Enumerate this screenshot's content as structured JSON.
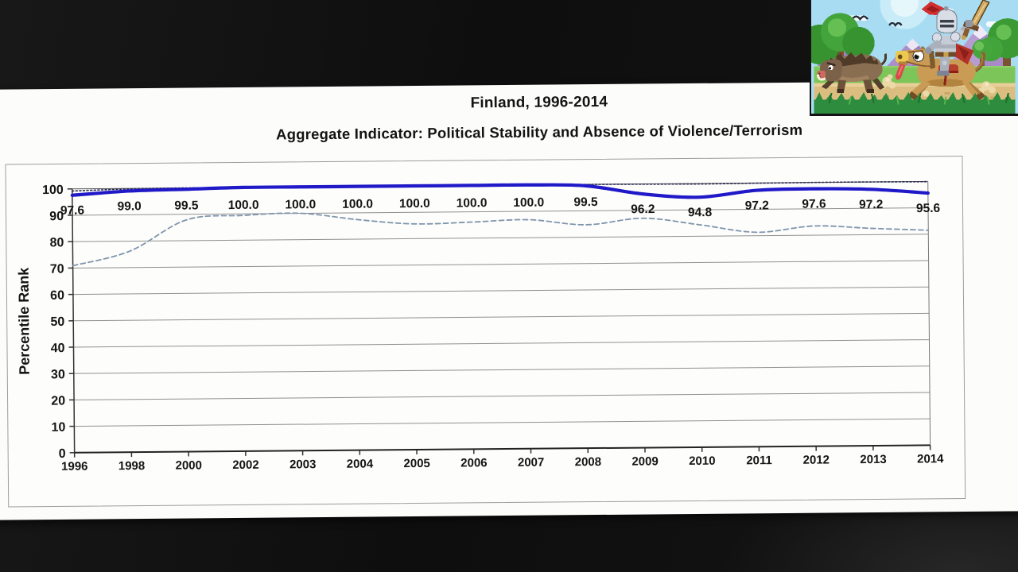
{
  "slide": {
    "title": "Finland, 1996-2014",
    "subtitle": "Aggregate Indicator: Political Stability and Absence of Violence/Terrorism"
  },
  "chart_data": {
    "type": "line",
    "title": "Finland, 1996-2014",
    "subtitle": "Aggregate Indicator: Political Stability and Absence of Violence/Terrorism",
    "ylabel": "Percentile Rank",
    "xlabel": "",
    "ylim": [
      0,
      100
    ],
    "ytick_labels": [
      "0",
      "10",
      "20",
      "30",
      "40",
      "50",
      "60",
      "70",
      "80",
      "90",
      "100"
    ],
    "grid": "horizontal",
    "legend": "none",
    "categories": [
      "1996",
      "1998",
      "2000",
      "2002",
      "2003",
      "2004",
      "2005",
      "2006",
      "2007",
      "2008",
      "2009",
      "2010",
      "2011",
      "2012",
      "2013",
      "2014"
    ],
    "series": [
      {
        "name": "percentile-rank",
        "line": "solid-thick",
        "color": "#2019c8",
        "values": [
          97.6,
          99.0,
          99.5,
          100.0,
          100.0,
          100.0,
          100.0,
          100.0,
          100.0,
          99.5,
          96.2,
          94.8,
          97.2,
          97.6,
          97.2,
          95.6
        ]
      },
      {
        "name": "upper-band-line",
        "line": "dotted",
        "color": "#2b2b52",
        "values": [
          99.2,
          99.8,
          100,
          100,
          100,
          100,
          100,
          100,
          100,
          100,
          99.9,
          99.8,
          99.9,
          100,
          100,
          99.9
        ]
      },
      {
        "name": "lower-band-line",
        "line": "dashed",
        "color": "#7f95ab",
        "values": [
          70.9,
          76.2,
          87.9,
          89.4,
          90.0,
          87.4,
          85.6,
          86.1,
          86.8,
          84.7,
          87.0,
          84.3,
          81.3,
          83.5,
          82.4,
          81.5
        ]
      }
    ],
    "data_labels": [
      "97.6",
      "99.0",
      "99.5",
      "100.0",
      "100.0",
      "100.0",
      "100.0",
      "100.0",
      "100.0",
      "99.5",
      "96.2",
      "94.8",
      "97.2",
      "97.6",
      "97.2",
      "95.6"
    ]
  },
  "overlay": {
    "type": "pixel-art-game-scene",
    "description": "Knight on horseback with raised sword chasing a wild boar",
    "sprites": [
      "boar",
      "horse",
      "knight",
      "sword",
      "trees",
      "mountains",
      "birds",
      "clouds",
      "dust"
    ]
  }
}
